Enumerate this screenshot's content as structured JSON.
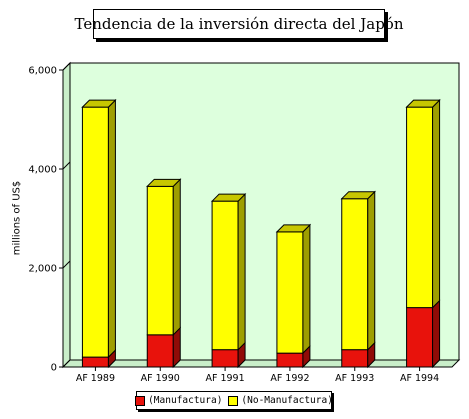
{
  "chart_data": {
    "type": "bar",
    "stacked": true,
    "three_d": true,
    "title": "Tendencia de la inversión directa del Japón",
    "ylabel": "millions of US$",
    "xlabel": "",
    "categories": [
      "AF 1989",
      "AF 1990",
      "AF 1991",
      "AF 1992",
      "AF 1993",
      "AF 1994"
    ],
    "series": [
      {
        "name": "(Manufactura)",
        "color": "#e8120c",
        "values": [
          200,
          650,
          350,
          280,
          350,
          1200
        ]
      },
      {
        "name": "(No-Manufactura)",
        "color": "#ffff00",
        "values": [
          5050,
          3000,
          3000,
          2450,
          3050,
          4050
        ]
      }
    ],
    "ylim": [
      0,
      6000
    ],
    "yticks": [
      "0",
      "2,000",
      "4,000",
      "6,000"
    ],
    "ytick_values": [
      0,
      2000,
      4000,
      6000
    ],
    "grid": false,
    "plot_background": "#ddffdd",
    "legend_position": "bottom"
  }
}
